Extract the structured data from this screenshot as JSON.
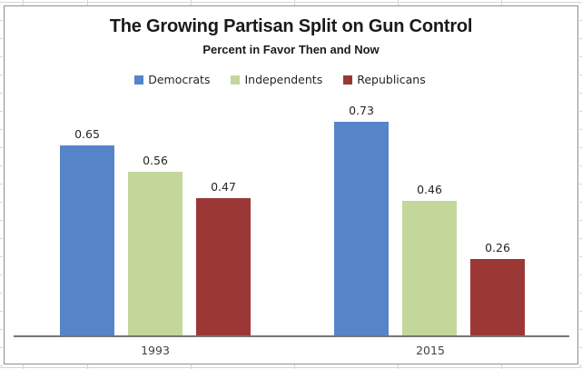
{
  "chart_data": {
    "type": "bar",
    "title": "The Growing Partisan Split on Gun Control",
    "subtitle": "Percent in Favor Then and Now",
    "categories": [
      "1993",
      "2015"
    ],
    "series": [
      {
        "name": "Democrats",
        "color": "#5585C8",
        "values": [
          0.65,
          0.73
        ]
      },
      {
        "name": "Independents",
        "color": "#C3D79B",
        "values": [
          0.56,
          0.46
        ]
      },
      {
        "name": "Republicans",
        "color": "#9B3836",
        "values": [
          0.47,
          0.26
        ]
      }
    ],
    "value_labels": [
      [
        "0.65",
        "0.73"
      ],
      [
        "0.56",
        "0.46"
      ],
      [
        "0.47",
        "0.26"
      ]
    ],
    "ylim": [
      0,
      0.8
    ],
    "y_axis_shown": false,
    "gridlines": false,
    "legend_position": "top-center",
    "bar_labels_shown": true
  },
  "colors": {
    "background": "#FFFFFF",
    "chart_border": "#8F8F8F",
    "axis_line": "#767676",
    "title_text": "#1A1A1A",
    "label_text": "#262626",
    "category_text": "#444444",
    "spreadsheet_gridline": "#D6D6D6",
    "series_blue": "#5585C8",
    "series_green": "#C3D79B",
    "series_red": "#9B3836"
  }
}
